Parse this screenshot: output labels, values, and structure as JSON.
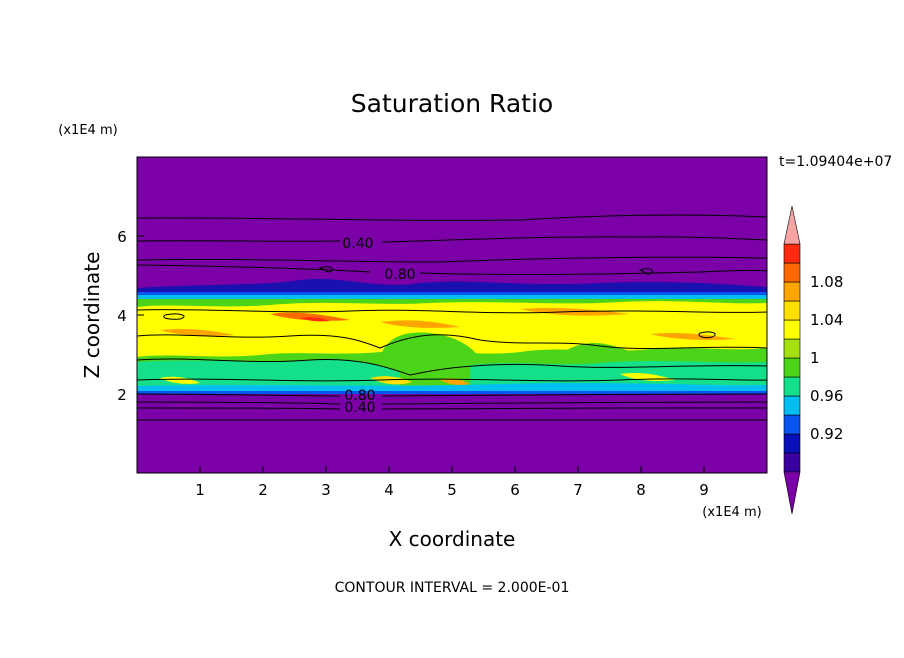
{
  "chart_data": {
    "type": "heatmap",
    "title": "Saturation Ratio",
    "xlabel": "X coordinate",
    "ylabel": "Z coordinate",
    "x_scale_label": "(x1E4 m)",
    "y_scale_label": "(x1E4 m)",
    "xlim": [
      0,
      10
    ],
    "ylim": [
      0,
      8
    ],
    "x_ticks": [
      "1",
      "2",
      "3",
      "4",
      "5",
      "6",
      "7",
      "8",
      "9"
    ],
    "y_ticks": [
      "2",
      "4",
      "6"
    ],
    "time_label": "t=1.09404e+07",
    "footer": "CONTOUR INTERVAL = 2.000E-01",
    "colorbar": {
      "labels": [
        "0.92",
        "0.96",
        "1",
        "1.04",
        "1.08"
      ],
      "colors": [
        "#7B00A8",
        "#3A00A0",
        "#0A10B8",
        "#0A55F0",
        "#00BFF0",
        "#13E088",
        "#4CD418",
        "#A4E010",
        "#FFFF00",
        "#FFE000",
        "#FFA500",
        "#FF6A00",
        "#FF2A10",
        "#F5A3A3"
      ]
    },
    "contour_labels": [
      {
        "text": "0.40",
        "x": 3.6,
        "z": 5.85
      },
      {
        "text": "0.80",
        "x": 4.25,
        "z": 5.25
      },
      {
        "text": "0.80",
        "x": 3.5,
        "z": 1.95
      },
      {
        "text": "0.40",
        "x": 3.5,
        "z": 1.68
      }
    ],
    "bands": [
      {
        "z0": 0.0,
        "z1": 4.55,
        "value": 0.85
      },
      {
        "z0": 4.55,
        "z1": 4.62,
        "value": 0.92
      },
      {
        "z0": 4.45,
        "z1": 4.56,
        "value": 0.96
      },
      {
        "z0": 4.35,
        "z1": 4.46,
        "value": 0.985
      },
      {
        "z0": 2.95,
        "z1": 4.36,
        "value": 1.02
      },
      {
        "z0": 2.05,
        "z1": 2.95,
        "value": 1.0
      },
      {
        "z0": 2.0,
        "z1": 2.1,
        "value": 0.985
      },
      {
        "z0": 8.0,
        "z1": 4.62,
        "value": 0.85
      }
    ]
  }
}
